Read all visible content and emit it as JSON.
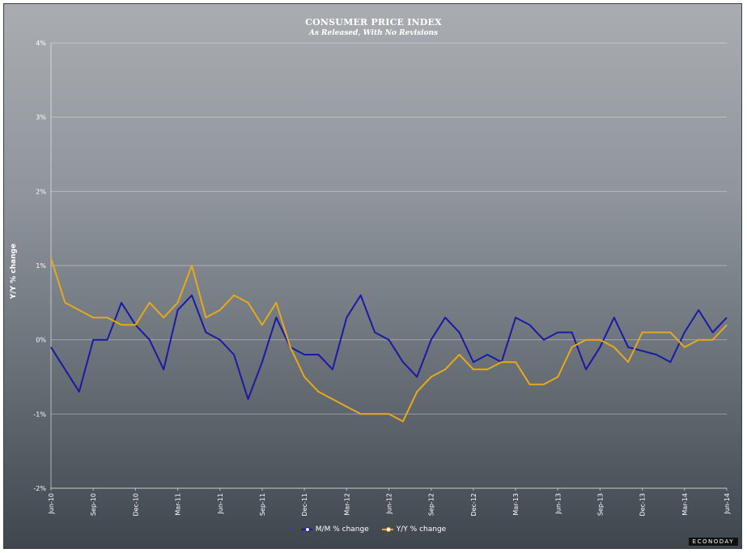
{
  "chart_data": {
    "type": "line",
    "title": "CONSUMER PRICE INDEX",
    "subtitle": "As Released, With No Revisions",
    "ylabel": "Y/Y % change",
    "xlabel": "",
    "ylim": [
      -2,
      4
    ],
    "yticks": [
      "4%",
      "3%",
      "2%",
      "1%",
      "0%",
      "-1%",
      "-2%"
    ],
    "ytick_values": [
      4,
      3,
      2,
      1,
      0,
      -1,
      -2
    ],
    "grid": true,
    "legend_position": "bottom",
    "x": [
      "Jun-10",
      "Jul-10",
      "Aug-10",
      "Sep-10",
      "Oct-10",
      "Nov-10",
      "Dec-10",
      "Jan-11",
      "Feb-11",
      "Mar-11",
      "Apr-11",
      "May-11",
      "Jun-11",
      "Jul-11",
      "Aug-11",
      "Sep-11",
      "Oct-11",
      "Nov-11",
      "Dec-11",
      "Jan-12",
      "Feb-12",
      "Mar-12",
      "Apr-12",
      "May-12",
      "Jun-12",
      "Jul-12",
      "Aug-12",
      "Sep-12",
      "Oct-12",
      "Nov-12",
      "Dec-12",
      "Jan-13",
      "Feb-13",
      "Mar-13",
      "Apr-13",
      "May-13",
      "Jun-13",
      "Jul-13",
      "Aug-13",
      "Sep-13",
      "Oct-13",
      "Nov-13",
      "Dec-13",
      "Jan-14",
      "Feb-14",
      "Mar-14",
      "Apr-14",
      "May-14",
      "Jun-14"
    ],
    "xtick_labels": [
      "Jun-10",
      "Sep-10",
      "Dec-10",
      "Mar-11",
      "Jun-11",
      "Sep-11",
      "Dec-11",
      "Mar-12",
      "Jun-12",
      "Sep-12",
      "Dec-12",
      "Mar-13",
      "Jun-13",
      "Sep-13",
      "Dec-13",
      "Mar-14",
      "Jun-14"
    ],
    "series": [
      {
        "name": "M/M % change",
        "color": "#1a1aa6",
        "values": [
          -0.1,
          -0.4,
          -0.7,
          0.0,
          0.0,
          0.5,
          0.2,
          0.0,
          -0.4,
          0.4,
          0.6,
          0.1,
          0.0,
          -0.2,
          -0.8,
          -0.3,
          0.3,
          -0.1,
          -0.2,
          -0.2,
          -0.4,
          0.3,
          0.6,
          0.1,
          0.0,
          -0.3,
          -0.5,
          0.0,
          0.3,
          0.1,
          -0.3,
          -0.2,
          -0.3,
          0.3,
          0.2,
          0.0,
          0.1,
          0.1,
          -0.4,
          -0.1,
          0.3,
          -0.1,
          -0.15,
          -0.2,
          -0.3,
          0.1,
          0.4,
          0.1,
          0.3
        ]
      },
      {
        "name": "Y/Y % change",
        "color": "#e8a81c",
        "values": [
          1.1,
          0.5,
          0.4,
          0.3,
          0.3,
          0.2,
          0.2,
          0.5,
          0.3,
          0.5,
          1.0,
          0.3,
          0.4,
          0.6,
          0.5,
          0.2,
          0.5,
          -0.1,
          -0.5,
          -0.7,
          -0.8,
          -0.9,
          -1.0,
          -1.0,
          -1.0,
          -1.1,
          -0.7,
          -0.5,
          -0.4,
          -0.2,
          -0.4,
          -0.4,
          -0.3,
          -0.3,
          -0.6,
          -0.6,
          -0.5,
          -0.1,
          0.0,
          0.0,
          -0.1,
          -0.3,
          0.1,
          0.1,
          0.1,
          -0.1,
          0.0,
          0.0,
          0.2
        ]
      }
    ]
  },
  "branding": {
    "logo_text": "ECONODAY"
  }
}
